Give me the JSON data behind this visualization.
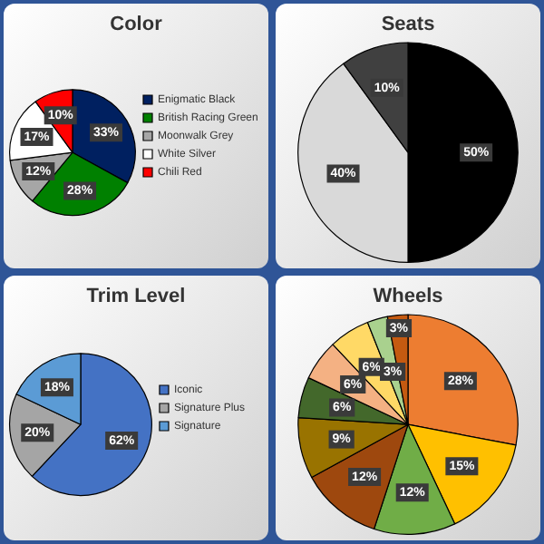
{
  "chart_data": [
    {
      "type": "pie",
      "title": "Color",
      "categories": [
        "Enigmatic Black",
        "British Racing Green",
        "Moonwalk Grey",
        "White Silver",
        "Chili Red"
      ],
      "values": [
        33,
        28,
        12,
        17,
        10
      ],
      "colors": [
        "#002060",
        "#008000",
        "#a6a6a6",
        "#ffffff",
        "#ff0000"
      ],
      "value_labels": [
        "33%",
        "28%",
        "12%",
        "17%",
        "10%"
      ],
      "legend": "right"
    },
    {
      "type": "pie",
      "title": "Seats",
      "categories": [
        null,
        null,
        null
      ],
      "values": [
        50,
        40,
        10
      ],
      "colors": [
        "#000000",
        "#d9d9d9",
        "#404040"
      ],
      "value_labels": [
        "50%",
        "40%",
        "10%"
      ]
    },
    {
      "type": "pie",
      "title": "Trim Level",
      "categories": [
        "Iconic",
        "Signature Plus",
        "Signature"
      ],
      "values": [
        62,
        20,
        18
      ],
      "colors": [
        "#4472c4",
        "#a5a5a5",
        "#5b9bd5"
      ],
      "value_labels": [
        "62%",
        "20%",
        "18%"
      ],
      "legend": "right"
    },
    {
      "type": "pie",
      "title": "Wheels",
      "categories": [
        null,
        null,
        null,
        null,
        null,
        null,
        null,
        null,
        null,
        null
      ],
      "values": [
        28,
        15,
        12,
        12,
        9,
        6,
        6,
        6,
        3,
        3
      ],
      "colors": [
        "#ed7d31",
        "#ffc000",
        "#70ad47",
        "#9e480e",
        "#997300",
        "#43682b",
        "#f4b183",
        "#ffd966",
        "#a9d18e",
        "#c55a11"
      ],
      "value_labels": [
        "28%",
        "15%",
        "12%",
        "12%",
        "9%",
        "6%",
        "6%",
        "6%",
        "3%",
        "3%"
      ]
    }
  ]
}
